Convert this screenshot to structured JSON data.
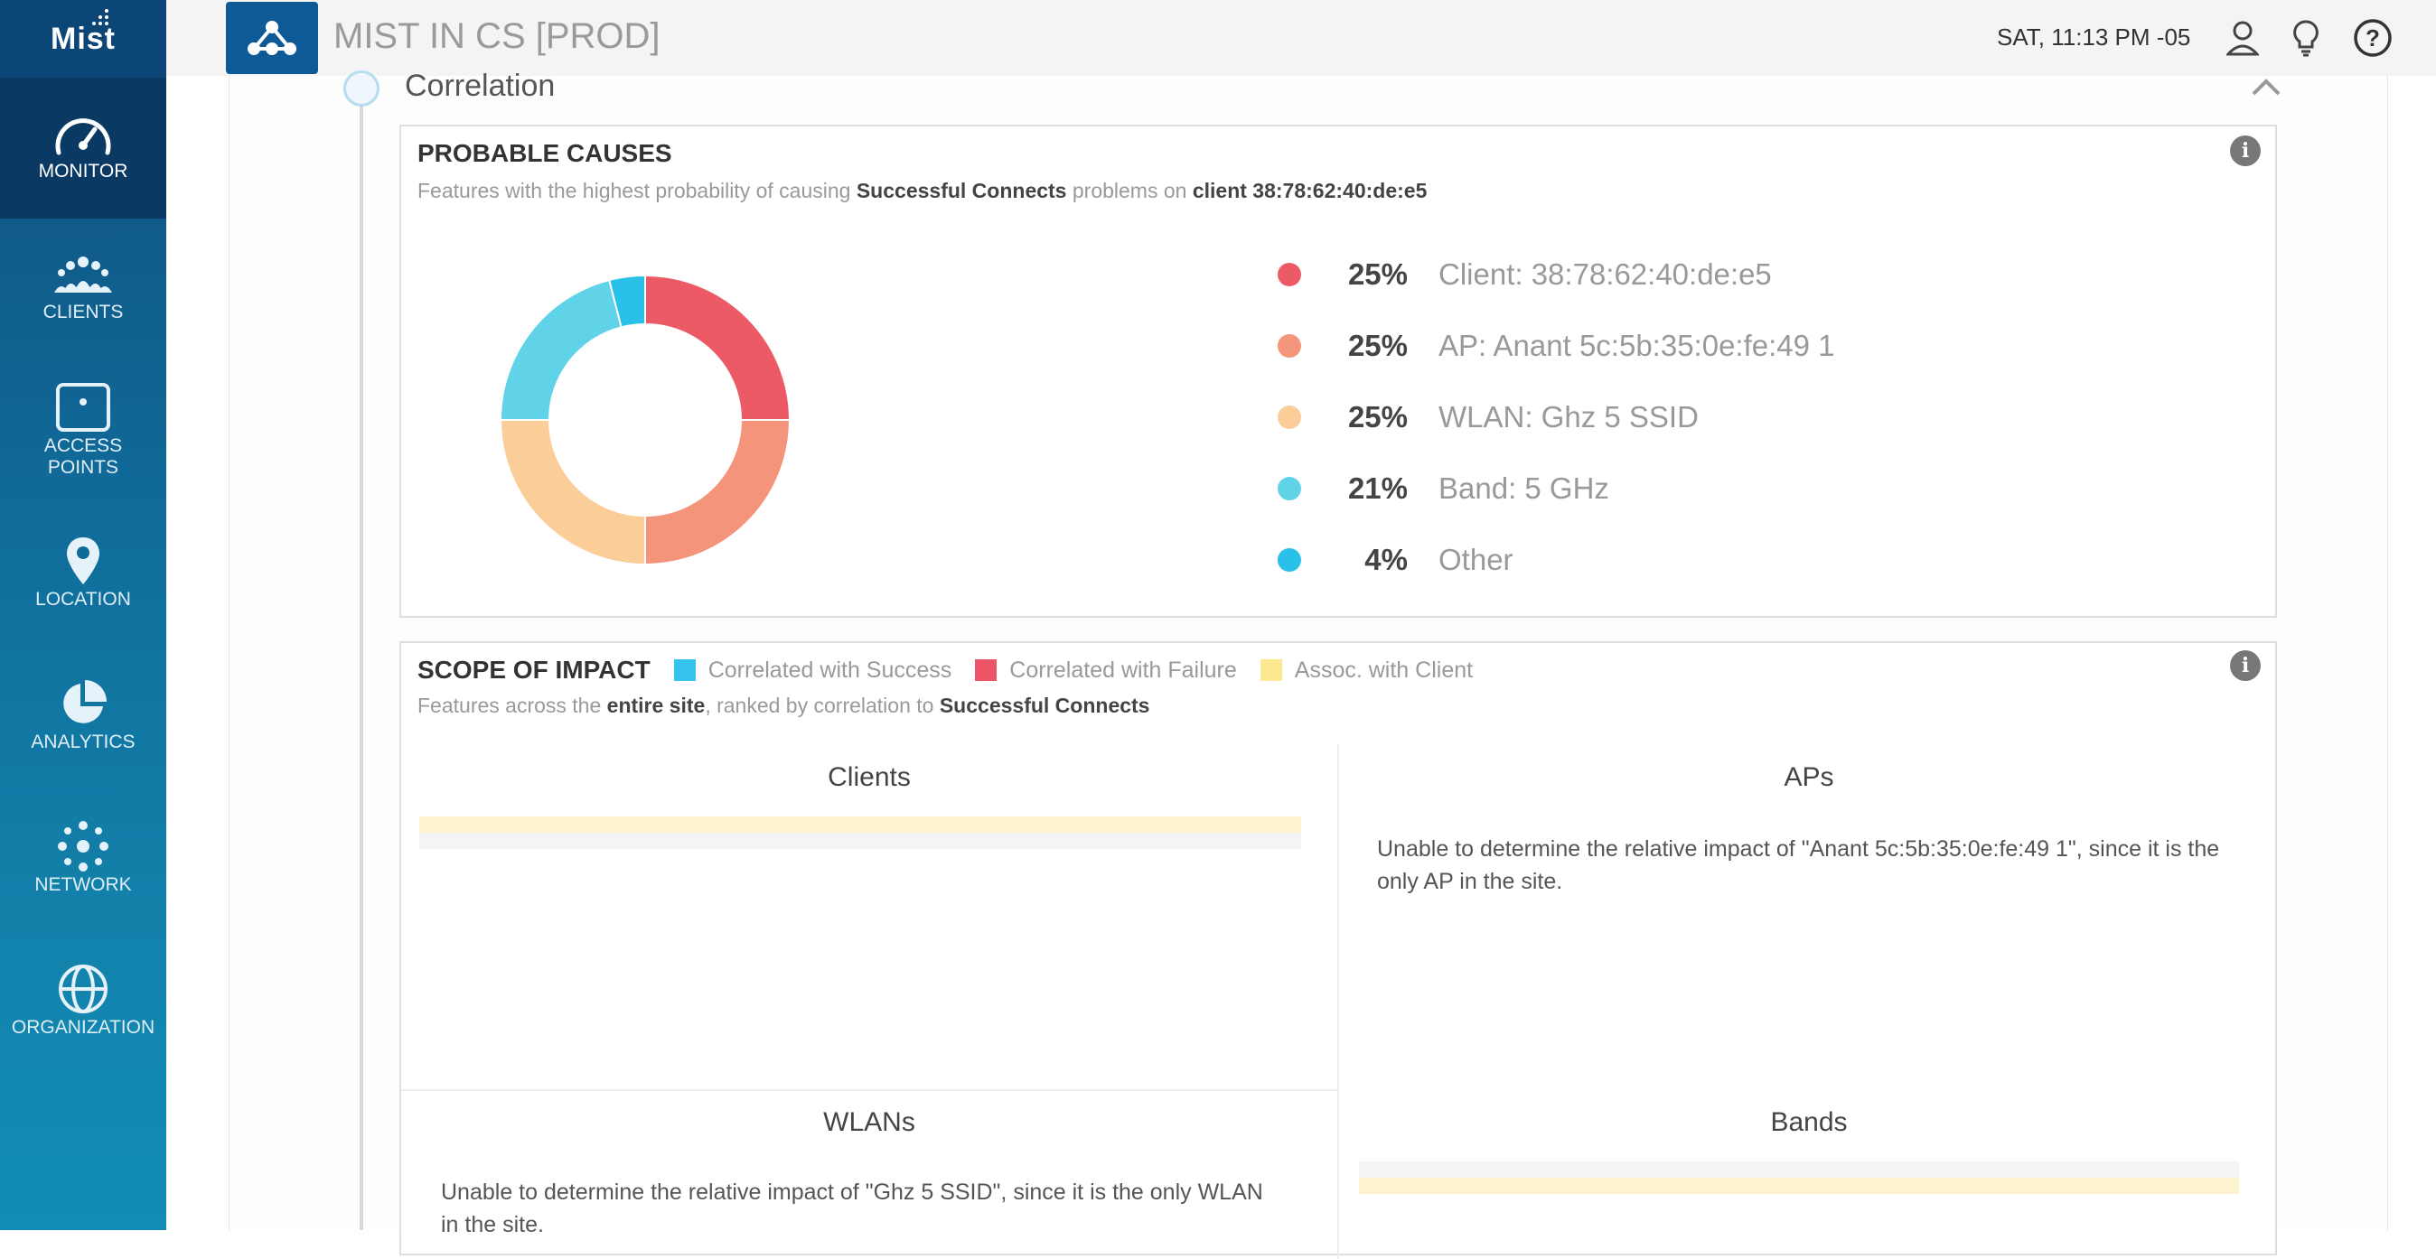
{
  "sidebar": {
    "logo": "Mist",
    "items": [
      {
        "label": "MONITOR",
        "icon": "gauge-icon",
        "active": true
      },
      {
        "label": "CLIENTS",
        "icon": "users-icon"
      },
      {
        "label": "ACCESS\nPOINTS",
        "icon": "access-point-icon"
      },
      {
        "label": "LOCATION",
        "icon": "map-pin-icon"
      },
      {
        "label": "ANALYTICS",
        "icon": "pie-chart-icon"
      },
      {
        "label": "NETWORK",
        "icon": "network-icon"
      },
      {
        "label": "ORGANIZATION",
        "icon": "globe-icon"
      }
    ]
  },
  "header": {
    "site_title": "MIST IN CS [PROD]",
    "clock": "SAT, 11:13 PM -05",
    "icons": [
      "site-selector-icon",
      "user-icon",
      "lightbulb-icon",
      "help-icon"
    ]
  },
  "section": {
    "title": "Correlation"
  },
  "probable_causes": {
    "title": "PROBABLE CAUSES",
    "sub_prefix": "Features with the highest probability of causing ",
    "sub_metric": "Successful Connects",
    "sub_middle": " problems on ",
    "sub_client": "client 38:78:62:40:de:e5",
    "causes": [
      {
        "pct": "25%",
        "value": 25,
        "label": "Client: 38:78:62:40:de:e5",
        "color": "#ec5a66"
      },
      {
        "pct": "25%",
        "value": 25,
        "label": "AP: Anant 5c:5b:35:0e:fe:49 1",
        "color": "#f4957b"
      },
      {
        "pct": "25%",
        "value": 25,
        "label": "WLAN: Ghz 5 SSID",
        "color": "#fbcd99"
      },
      {
        "pct": "21%",
        "value": 21,
        "label": "Band: 5 GHz",
        "color": "#60d3e8"
      },
      {
        "pct": "4%",
        "value": 4,
        "label": "Other",
        "color": "#29c0ea"
      }
    ]
  },
  "scope": {
    "title": "SCOPE OF IMPACT",
    "keys": [
      {
        "label": "Correlated with Success",
        "color": "#33c3ec"
      },
      {
        "label": "Correlated with Failure",
        "color": "#ec5565"
      },
      {
        "label": "Assoc. with Client",
        "color": "#fce88e"
      }
    ],
    "sub_prefix": "Features across the ",
    "sub_scope": "entire site",
    "sub_middle": ", ranked by correlation to ",
    "sub_metric": "Successful Connects",
    "quadrants": {
      "clients": {
        "title": "Clients"
      },
      "aps": {
        "title": "APs",
        "message": "Unable to determine the relative impact of \"Anant 5c:5b:35:0e:fe:49 1\", since it is the only AP in the site."
      },
      "wlans": {
        "title": "WLANs",
        "message": "Unable to determine the relative impact of \"Ghz 5 SSID\", since it is the only WLAN in the site."
      },
      "bands": {
        "title": "Bands"
      }
    }
  }
}
